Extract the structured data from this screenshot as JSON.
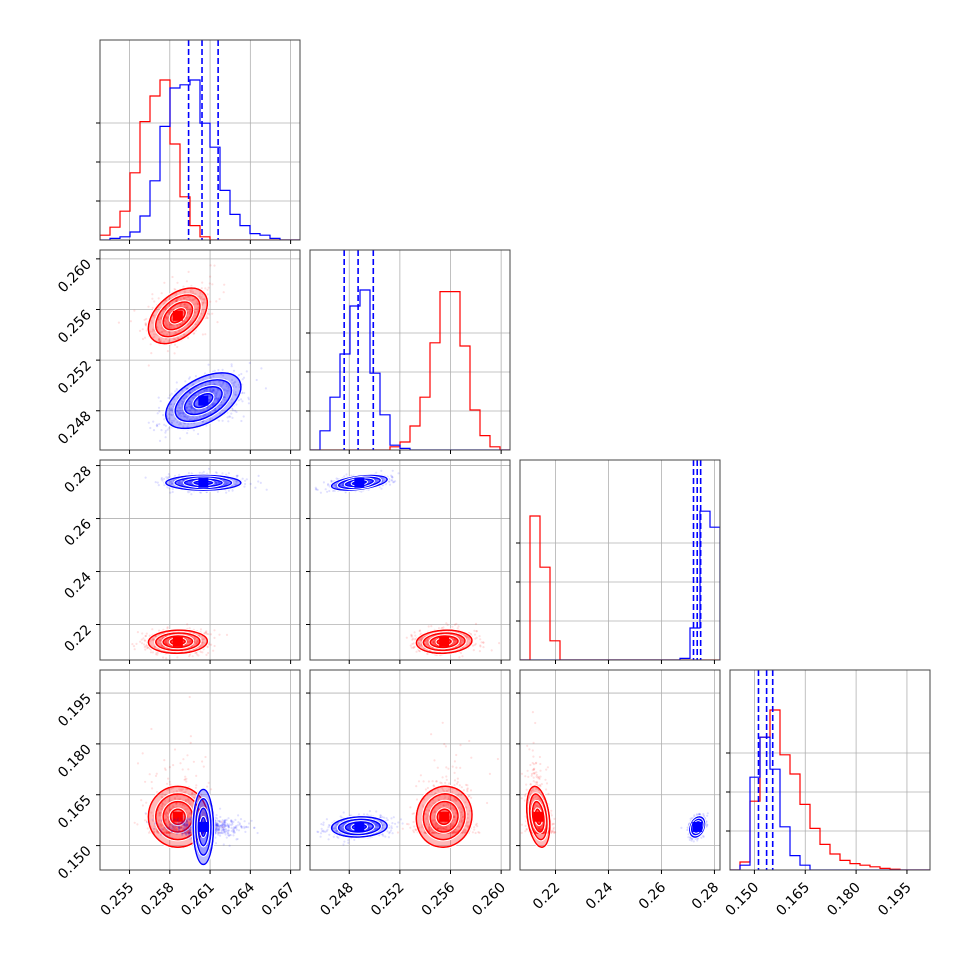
{
  "chart_data": {
    "type": "corner",
    "parameters": [
      {
        "ticks": [
          0.255,
          0.258,
          0.261,
          0.264,
          0.267
        ],
        "tick_labels": [
          "0.255",
          "0.258",
          "0.261",
          "0.264",
          "0.267"
        ],
        "range": [
          0.2528,
          0.2677
        ]
      },
      {
        "ticks": [
          0.248,
          0.252,
          0.256,
          0.26
        ],
        "tick_labels": [
          "0.248",
          "0.252",
          "0.256",
          "0.260"
        ],
        "range": [
          0.2449,
          0.2607
        ]
      },
      {
        "ticks": [
          0.22,
          0.24,
          0.26,
          0.28
        ],
        "tick_labels": [
          "0.22",
          "0.24",
          "0.26",
          "0.28"
        ],
        "range": [
          0.2066,
          0.2821
        ]
      },
      {
        "ticks": [
          0.15,
          0.165,
          0.18,
          0.195
        ],
        "tick_labels": [
          "0.150",
          "0.165",
          "0.180",
          "0.195"
        ],
        "range": [
          0.1428,
          0.2018
        ]
      }
    ],
    "series": [
      {
        "color": "#ff0000",
        "means": [
          0.2586,
          0.2555,
          0.2135,
          0.1585
        ],
        "sigmas": [
          0.0011,
          0.0011,
          0.0022,
          0.0045
        ],
        "corr": [
          [
            1,
            0.45,
            0.05,
            0.0
          ],
          [
            0.45,
            1,
            0.1,
            0.05
          ],
          [
            0.05,
            0.1,
            1,
            -0.3
          ],
          [
            0.0,
            0.05,
            -0.3,
            1
          ]
        ],
        "skew": [
          0,
          0,
          0,
          1
        ],
        "histograms": [
          [
            0.03,
            0.08,
            0.18,
            0.42,
            0.74,
            0.9,
            1.0,
            0.6,
            0.27,
            0.09,
            0.02,
            0,
            0,
            0,
            0,
            0,
            0,
            0,
            0,
            0
          ],
          [
            0,
            0,
            0,
            0,
            0,
            0,
            0,
            0,
            0.02,
            0.05,
            0.15,
            0.33,
            0.67,
            0.99,
            0.99,
            0.65,
            0.25,
            0.09,
            0.02,
            0
          ],
          [
            0,
            0.9,
            0.58,
            0.12,
            0,
            0,
            0,
            0,
            0,
            0,
            0,
            0,
            0,
            0,
            0,
            0,
            0,
            0,
            0,
            0
          ],
          [
            0,
            0.05,
            0.43,
            0.83,
            1.0,
            0.72,
            0.6,
            0.41,
            0.26,
            0.16,
            0.1,
            0.06,
            0.04,
            0.03,
            0.02,
            0.01,
            0.005,
            0,
            0,
            0
          ]
        ]
      },
      {
        "color": "#0000ff",
        "means": [
          0.2605,
          0.2488,
          0.2735,
          0.1555
        ],
        "sigmas": [
          0.0014,
          0.0011,
          0.0014,
          0.0015
        ],
        "corr": [
          [
            1,
            0.5,
            0.0,
            0.0
          ],
          [
            0.5,
            1,
            0.45,
            0.1
          ],
          [
            0.0,
            0.45,
            1,
            0.3
          ],
          [
            0.0,
            0.1,
            0.3,
            1
          ]
        ],
        "skew": [
          0,
          0,
          0,
          0
        ],
        "histograms": [
          [
            0,
            0.01,
            0.02,
            0.05,
            0.15,
            0.37,
            0.71,
            0.95,
            0.97,
            1.0,
            0.73,
            0.58,
            0.31,
            0.16,
            0.09,
            0.04,
            0.03,
            0.01,
            0,
            0
          ],
          [
            0,
            0.12,
            0.33,
            0.6,
            0.9,
            1.0,
            0.48,
            0.22,
            0.03,
            0.01,
            0,
            0,
            0,
            0,
            0,
            0,
            0,
            0,
            0,
            0
          ],
          [
            0,
            0,
            0,
            0,
            0,
            0,
            0,
            0,
            0,
            0,
            0,
            0,
            0,
            0,
            0,
            0,
            0.01,
            0.2,
            0.93,
            0.83
          ],
          [
            0,
            0.03,
            0.58,
            0.83,
            0.63,
            0.27,
            0.09,
            0.03,
            0,
            0,
            0,
            0,
            0,
            0,
            0,
            0,
            0,
            0,
            0,
            0
          ]
        ],
        "quantiles": [
          [
            0.2594,
            0.2604,
            0.2616
          ],
          [
            0.2476,
            0.2487,
            0.2499
          ],
          [
            0.2721,
            0.2735,
            0.2748
          ],
          [
            0.1512,
            0.1536,
            0.1554
          ]
        ]
      }
    ],
    "contour_levels": [
      0.5,
      1.0,
      1.5,
      2.0
    ],
    "grid": true
  }
}
